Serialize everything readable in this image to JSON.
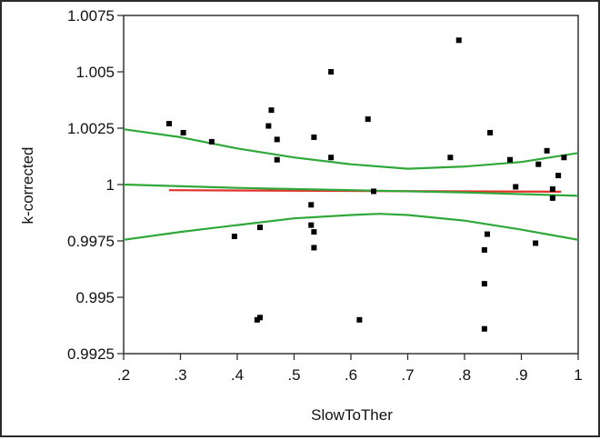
{
  "chart_data": {
    "type": "scatter",
    "title": "",
    "xlabel": "SlowToTher",
    "ylabel": "k-corrected",
    "xlim": [
      0.2,
      1.0
    ],
    "ylim": [
      0.9925,
      1.0075
    ],
    "grid": false,
    "legend": "none",
    "x_ticks": [
      {
        "value": 0.2,
        "label": ".2"
      },
      {
        "value": 0.3,
        "label": ".3"
      },
      {
        "value": 0.4,
        "label": ".4"
      },
      {
        "value": 0.5,
        "label": ".5"
      },
      {
        "value": 0.6,
        "label": ".6"
      },
      {
        "value": 0.7,
        "label": ".7"
      },
      {
        "value": 0.8,
        "label": ".8"
      },
      {
        "value": 0.9,
        "label": ".9"
      },
      {
        "value": 1.0,
        "label": "1"
      }
    ],
    "y_ticks": [
      {
        "value": 0.9925,
        "label": "0.9925"
      },
      {
        "value": 0.995,
        "label": "0.995"
      },
      {
        "value": 0.9975,
        "label": "0.9975"
      },
      {
        "value": 1.0,
        "label": "1"
      },
      {
        "value": 1.0025,
        "label": "1.0025"
      },
      {
        "value": 1.005,
        "label": "1.005"
      },
      {
        "value": 1.0075,
        "label": "1.0075"
      }
    ],
    "points": [
      {
        "x": 0.28,
        "y": 1.0027
      },
      {
        "x": 0.305,
        "y": 1.0023
      },
      {
        "x": 0.355,
        "y": 1.0019
      },
      {
        "x": 0.395,
        "y": 0.9977
      },
      {
        "x": 0.435,
        "y": 0.994
      },
      {
        "x": 0.44,
        "y": 0.9941
      },
      {
        "x": 0.44,
        "y": 0.9981
      },
      {
        "x": 0.455,
        "y": 1.0026
      },
      {
        "x": 0.46,
        "y": 1.0033
      },
      {
        "x": 0.47,
        "y": 1.002
      },
      {
        "x": 0.47,
        "y": 1.0011
      },
      {
        "x": 0.53,
        "y": 0.9991
      },
      {
        "x": 0.53,
        "y": 0.9982
      },
      {
        "x": 0.535,
        "y": 1.0021
      },
      {
        "x": 0.535,
        "y": 0.9979
      },
      {
        "x": 0.535,
        "y": 0.9972
      },
      {
        "x": 0.565,
        "y": 1.0012
      },
      {
        "x": 0.565,
        "y": 1.005
      },
      {
        "x": 0.615,
        "y": 0.994
      },
      {
        "x": 0.63,
        "y": 1.0029
      },
      {
        "x": 0.64,
        "y": 0.9997
      },
      {
        "x": 0.775,
        "y": 1.0012
      },
      {
        "x": 0.79,
        "y": 1.0064
      },
      {
        "x": 0.835,
        "y": 0.9956
      },
      {
        "x": 0.835,
        "y": 0.9936
      },
      {
        "x": 0.835,
        "y": 0.9971
      },
      {
        "x": 0.84,
        "y": 0.9978
      },
      {
        "x": 0.845,
        "y": 1.0023
      },
      {
        "x": 0.88,
        "y": 1.0011
      },
      {
        "x": 0.89,
        "y": 0.9999
      },
      {
        "x": 0.925,
        "y": 0.9974
      },
      {
        "x": 0.93,
        "y": 1.0009
      },
      {
        "x": 0.945,
        "y": 1.0015
      },
      {
        "x": 0.955,
        "y": 0.9994
      },
      {
        "x": 0.955,
        "y": 0.9998
      },
      {
        "x": 0.965,
        "y": 1.0004
      },
      {
        "x": 0.975,
        "y": 1.0012
      }
    ],
    "lines": [
      {
        "role": "fit",
        "color": "#e0332b",
        "points": [
          {
            "x": 0.28,
            "y": 0.99975
          },
          {
            "x": 0.97,
            "y": 0.99968
          }
        ]
      },
      {
        "role": "upper-confidence",
        "color": "#2fa83a",
        "points": [
          {
            "x": 0.2,
            "y": 1.00245
          },
          {
            "x": 0.3,
            "y": 1.0021
          },
          {
            "x": 0.4,
            "y": 1.0016
          },
          {
            "x": 0.5,
            "y": 1.0012
          },
          {
            "x": 0.6,
            "y": 1.0009
          },
          {
            "x": 0.7,
            "y": 1.0007
          },
          {
            "x": 0.8,
            "y": 1.0008
          },
          {
            "x": 0.9,
            "y": 1.001
          },
          {
            "x": 1.0,
            "y": 1.0014
          }
        ]
      },
      {
        "role": "lower-confidence",
        "color": "#2fa83a",
        "points": [
          {
            "x": 0.2,
            "y": 0.99755
          },
          {
            "x": 0.3,
            "y": 0.9979
          },
          {
            "x": 0.4,
            "y": 0.9982
          },
          {
            "x": 0.5,
            "y": 0.9985
          },
          {
            "x": 0.6,
            "y": 0.99865
          },
          {
            "x": 0.65,
            "y": 0.9987
          },
          {
            "x": 0.7,
            "y": 0.99865
          },
          {
            "x": 0.8,
            "y": 0.9984
          },
          {
            "x": 0.9,
            "y": 0.998
          },
          {
            "x": 1.0,
            "y": 0.99755
          }
        ]
      },
      {
        "role": "center",
        "color": "#2fa83a",
        "points": [
          {
            "x": 0.2,
            "y": 1.0
          },
          {
            "x": 0.4,
            "y": 0.99985
          },
          {
            "x": 0.6,
            "y": 0.99975
          },
          {
            "x": 0.8,
            "y": 0.99965
          },
          {
            "x": 1.0,
            "y": 0.9995
          }
        ]
      }
    ],
    "colors": {
      "points": "#000000",
      "fit": "#e0332b",
      "band": "#2fa83a",
      "axis": "#333333"
    }
  }
}
